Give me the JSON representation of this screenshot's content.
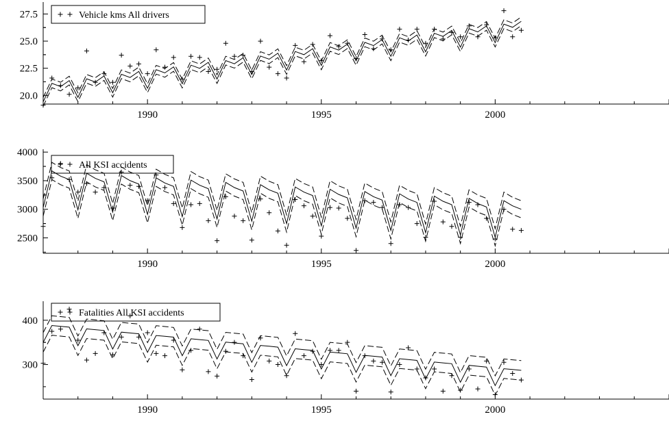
{
  "chart_data": [
    {
      "type": "line",
      "title": "",
      "xlabel": "",
      "ylabel": "",
      "xlim": [
        1987.0,
        2005.0
      ],
      "ylim": [
        19.2,
        28.6
      ],
      "x_ticks": [
        "1990",
        "1995",
        "2000"
      ],
      "y_ticks": [
        "20.0",
        "22.5",
        "25.0",
        "27.5"
      ],
      "legend": {
        "label": "Vehicle kms All drivers",
        "position": "top-left",
        "marker": "+"
      },
      "model": {
        "start": 1987.0,
        "trend_start": 20.5,
        "trend_slope": 0.42,
        "seasonal": [
          -1.1,
          0.5,
          0.1,
          0.55
        ],
        "band": 0.4
      },
      "grid": false,
      "series": [
        {
          "style": "plus-markers",
          "x": [
            1987.0,
            1987.25,
            1987.5,
            1987.75,
            1988.0,
            1988.25,
            1988.5,
            1988.75,
            1989.0,
            1989.25,
            1989.5,
            1989.75,
            1990.0,
            1990.25,
            1990.5,
            1990.75,
            1991.0,
            1991.25,
            1991.5,
            1991.75,
            1992.0,
            1992.25,
            1992.5,
            1992.75,
            1993.0,
            1993.25,
            1993.5,
            1993.75,
            1994.0,
            1994.25,
            1994.5,
            1994.75,
            1995.0,
            1995.25,
            1995.5,
            1995.75,
            1996.0,
            1996.25,
            1996.5,
            1996.75,
            1997.0,
            1997.25,
            1997.5,
            1997.75,
            1998.0,
            1998.25,
            1998.5,
            1998.75,
            1999.0,
            1999.25,
            1999.5,
            1999.75,
            2000.0,
            2000.25,
            2000.5,
            2000.75
          ],
          "y": [
            19.1,
            21.6,
            20.9,
            20.1,
            20.7,
            24.1,
            21.2,
            22.0,
            21.2,
            23.7,
            22.7,
            22.9,
            22.0,
            24.2,
            22.6,
            23.5,
            21.5,
            23.6,
            23.5,
            22.2,
            22.4,
            24.8,
            23.6,
            23.7,
            22.2,
            25.0,
            22.6,
            22.0,
            21.6,
            24.6,
            23.1,
            24.7,
            23.2,
            25.5,
            24.5,
            24.8,
            23.4,
            25.6,
            24.3,
            25.2,
            24.2,
            26.1,
            25.1,
            26.1,
            24.8,
            26.1,
            25.2,
            25.8,
            25.4,
            26.4,
            25.4,
            26.5,
            25.3,
            27.8,
            25.4,
            26.0
          ]
        }
      ]
    },
    {
      "type": "line",
      "title": "",
      "xlabel": "",
      "ylabel": "",
      "xlim": [
        1987.0,
        2005.0
      ],
      "ylim": [
        2230,
        4050
      ],
      "x_ticks": [
        "1990",
        "1995",
        "2000"
      ],
      "y_ticks": [
        "2500",
        "3000",
        "3500",
        "4000"
      ],
      "legend": {
        "label": "All KSI accidents",
        "position": "top-left",
        "marker": "+"
      },
      "model": {
        "start": 1987.0,
        "trend_start": 3480,
        "trend_slope": -40,
        "seasonal": [
          -450,
          200,
          120,
          70
        ],
        "band": 150
      },
      "grid": false,
      "series": [
        {
          "style": "plus-markers",
          "x": [
            1987.0,
            1987.25,
            1987.5,
            1987.75,
            1988.0,
            1988.25,
            1988.5,
            1988.75,
            1989.0,
            1989.25,
            1989.5,
            1989.75,
            1990.0,
            1990.25,
            1990.5,
            1990.75,
            1991.0,
            1991.25,
            1991.5,
            1991.75,
            1992.0,
            1992.25,
            1992.5,
            1992.75,
            1993.0,
            1993.25,
            1993.5,
            1993.75,
            1994.0,
            1994.25,
            1994.5,
            1994.75,
            1995.0,
            1995.25,
            1995.5,
            1995.75,
            1996.0,
            1996.25,
            1996.5,
            1996.75,
            1997.0,
            1997.25,
            1997.5,
            1997.75,
            1998.0,
            1998.25,
            1998.5,
            1998.75,
            1999.0,
            1999.25,
            1999.5,
            1999.75,
            2000.0,
            2000.25,
            2000.5,
            2000.75
          ],
          "y": [
            2700,
            3550,
            3800,
            3520,
            3300,
            3450,
            3300,
            3380,
            3020,
            3650,
            3420,
            3400,
            3150,
            3600,
            3380,
            3100,
            2680,
            3080,
            3100,
            2800,
            2450,
            3220,
            2880,
            2800,
            2460,
            3180,
            2940,
            2620,
            2370,
            3170,
            3060,
            2880,
            2530,
            3030,
            3020,
            2840,
            2280,
            3150,
            3120,
            3030,
            2400,
            3080,
            3030,
            2750,
            2510,
            3140,
            2780,
            2700,
            2510,
            3120,
            3080,
            2840,
            2480,
            3000,
            2650,
            2630
          ]
        }
      ]
    },
    {
      "type": "line",
      "title": "",
      "xlabel": "",
      "ylabel": "",
      "xlim": [
        1987.0,
        2005.0
      ],
      "ylim": [
        222,
        443
      ],
      "x_ticks": [
        "1990",
        "1995",
        "2000"
      ],
      "y_ticks": [
        "300",
        "400"
      ],
      "legend": {
        "label": "Fatalities All KSI accidents",
        "position": "top-left",
        "marker": "+"
      },
      "model": {
        "start": 1987.0,
        "trend_start": 375,
        "trend_slope": -7.5,
        "seasonal": [
          -25,
          15,
          15,
          15
        ],
        "band": 22
      },
      "grid": false,
      "series": [
        {
          "style": "plus-markers",
          "x": [
            1987.0,
            1987.25,
            1987.5,
            1987.75,
            1988.0,
            1988.25,
            1988.5,
            1988.75,
            1989.0,
            1989.25,
            1989.5,
            1989.75,
            1990.0,
            1990.25,
            1990.5,
            1990.75,
            1991.0,
            1991.25,
            1991.5,
            1991.75,
            1992.0,
            1992.25,
            1992.5,
            1992.75,
            1993.0,
            1993.25,
            1993.5,
            1993.75,
            1994.0,
            1994.25,
            1994.5,
            1994.75,
            1995.0,
            1995.25,
            1995.5,
            1995.75,
            1996.0,
            1996.25,
            1996.5,
            1996.75,
            1997.0,
            1997.25,
            1997.5,
            1997.75,
            1998.0,
            1998.25,
            1998.5,
            1998.75,
            1999.0,
            1999.25,
            1999.5,
            1999.75,
            2000.0,
            2000.25,
            2000.5,
            2000.75
          ],
          "y": [
            303,
            375,
            380,
            425,
            355,
            310,
            325,
            372,
            322,
            362,
            410,
            362,
            372,
            325,
            320,
            355,
            288,
            332,
            380,
            284,
            274,
            330,
            350,
            320,
            266,
            360,
            308,
            300,
            275,
            370,
            320,
            330,
            300,
            332,
            332,
            350,
            240,
            320,
            308,
            305,
            238,
            300,
            338,
            290,
            270,
            290,
            240,
            275,
            242,
            290,
            245,
            308,
            232,
            305,
            280,
            265
          ]
        }
      ]
    }
  ]
}
